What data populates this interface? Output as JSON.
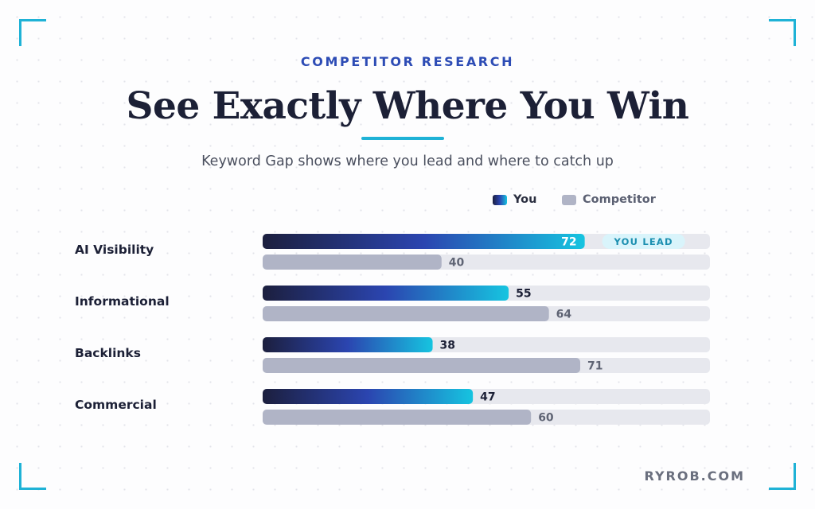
{
  "eyebrow": "COMPETITOR RESEARCH",
  "headline": "See Exactly Where You Win",
  "subtitle": "Keyword Gap shows where you lead and where to catch up",
  "brand": "RYROB.COM",
  "colors": {
    "accent": "#1fb2d6",
    "eyebrow": "#2d4cb5",
    "you_gradient": [
      "#1c1f3e",
      "#2b45b0",
      "#16c4e0"
    ],
    "competitor": "#b0b4c6",
    "track": "#e7e8ee",
    "badge_bg": "#d9f4fb"
  },
  "chart_data": {
    "type": "bar",
    "orientation": "horizontal",
    "categories": [
      "AI Visibility",
      "Informational",
      "Backlinks",
      "Commercial"
    ],
    "series": [
      {
        "name": "You",
        "values": [
          72,
          55,
          38,
          47
        ]
      },
      {
        "name": "Competitor",
        "values": [
          40,
          64,
          71,
          60
        ]
      }
    ],
    "xlim": [
      0,
      100
    ],
    "annotation": {
      "category": "AI Visibility",
      "text": "YOU LEAD"
    },
    "grid": false,
    "legend": "top-right"
  }
}
